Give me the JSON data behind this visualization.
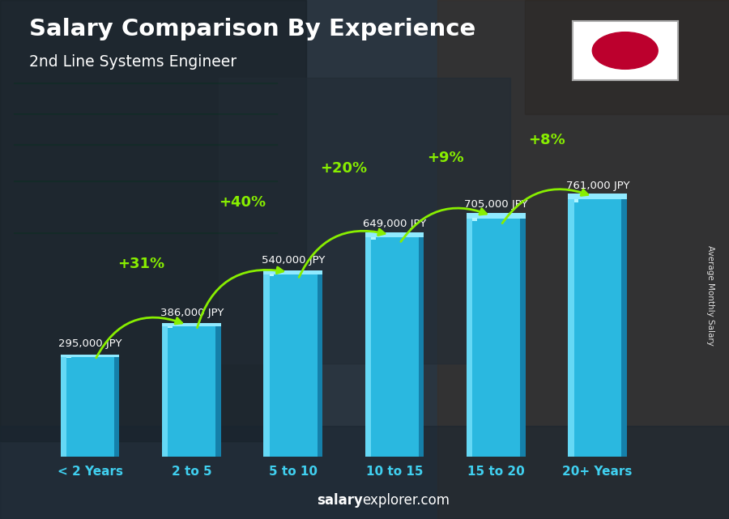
{
  "title": "Salary Comparison By Experience",
  "subtitle": "2nd Line Systems Engineer",
  "categories": [
    "< 2 Years",
    "2 to 5",
    "5 to 10",
    "10 to 15",
    "15 to 20",
    "20+ Years"
  ],
  "values": [
    295000,
    386000,
    540000,
    649000,
    705000,
    761000
  ],
  "salary_labels": [
    "295,000 JPY",
    "386,000 JPY",
    "540,000 JPY",
    "649,000 JPY",
    "705,000 JPY",
    "761,000 JPY"
  ],
  "pct_changes": [
    null,
    "+31%",
    "+40%",
    "+20%",
    "+9%",
    "+8%"
  ],
  "bar_face_color": "#29b8e8",
  "bar_left_color": "#60d8f8",
  "bar_right_color": "#1080b0",
  "bar_top_color": "#a0eeff",
  "bg_color": "#1e2d3e",
  "title_color": "#ffffff",
  "subtitle_color": "#ffffff",
  "salary_label_color": "#ffffff",
  "pct_color": "#88ee00",
  "xlabel_color": "#40d0f0",
  "footer_salary_color": "#ffffff",
  "footer_explorer_color": "#ffffff",
  "ylabel_text": "Average Monthly Salary",
  "ylim": [
    0,
    950000
  ],
  "bar_width": 0.58
}
